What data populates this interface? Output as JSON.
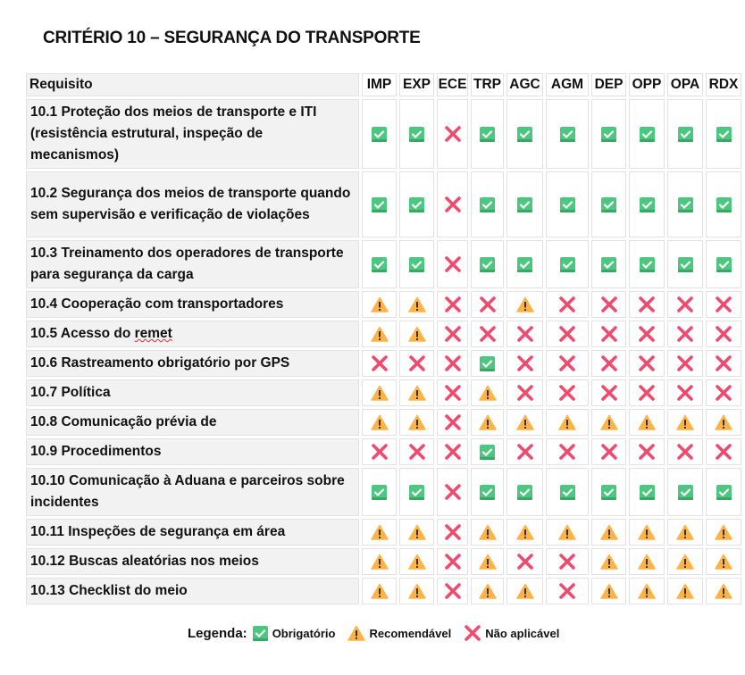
{
  "title": "CRITÉRIO 10 – SEGURANÇA DO TRANSPORTE",
  "header": {
    "requisito": "Requisito",
    "columns": [
      "IMP",
      "EXP",
      "ECE",
      "TRP",
      "AGC",
      "AGM",
      "DEP",
      "OPP",
      "OPA",
      "RDX"
    ]
  },
  "rows": [
    {
      "label": "10.1 Proteção dos meios de transporte e ITI (resistência estrutural, inspeção de mecanismos)",
      "values": [
        "C",
        "C",
        "X",
        "C",
        "C",
        "C",
        "C",
        "C",
        "C",
        "C"
      ]
    },
    {
      "label": "10.2 Segurança dos meios de transporte quando sem supervisão e verificação de violações",
      "values": [
        "C",
        "C",
        "X",
        "C",
        "C",
        "C",
        "C",
        "C",
        "C",
        "C"
      ]
    },
    {
      "label": "10.3 Treinamento dos operadores de transporte para segurança da carga",
      "values": [
        "C",
        "C",
        "X",
        "C",
        "C",
        "C",
        "C",
        "C",
        "C",
        "C"
      ]
    },
    {
      "label": "10.4 Cooperação com transportadores",
      "values": [
        "W",
        "W",
        "X",
        "X",
        "W",
        "X",
        "X",
        "X",
        "X",
        "X"
      ]
    },
    {
      "label": "10.5 Acesso do remet",
      "values": [
        "W",
        "W",
        "X",
        "X",
        "X",
        "X",
        "X",
        "X",
        "X",
        "X"
      ]
    },
    {
      "label": "10.6 Rastreamento obrigatório por GPS",
      "values": [
        "X",
        "X",
        "X",
        "C",
        "X",
        "X",
        "X",
        "X",
        "X",
        "X"
      ]
    },
    {
      "label": "10.7 Política",
      "values": [
        "W",
        "W",
        "X",
        "W",
        "X",
        "X",
        "X",
        "X",
        "X",
        "X"
      ]
    },
    {
      "label": "10.8 Comunicação prévia de",
      "values": [
        "W",
        "W",
        "X",
        "W",
        "W",
        "W",
        "W",
        "W",
        "W",
        "W"
      ]
    },
    {
      "label": "10.9 Procedimentos",
      "values": [
        "X",
        "X",
        "X",
        "C",
        "X",
        "X",
        "X",
        "X",
        "X",
        "X"
      ]
    },
    {
      "label": "10.10 Comunicação à Aduana e parceiros sobre incidentes",
      "values": [
        "C",
        "C",
        "X",
        "C",
        "C",
        "C",
        "C",
        "C",
        "C",
        "C"
      ]
    },
    {
      "label": "10.11 Inspeções de segurança em área",
      "values": [
        "W",
        "W",
        "X",
        "W",
        "W",
        "W",
        "W",
        "W",
        "W",
        "W"
      ]
    },
    {
      "label": "10.12 Buscas aleatórias nos meios",
      "values": [
        "W",
        "W",
        "X",
        "W",
        "X",
        "X",
        "W",
        "W",
        "W",
        "W"
      ]
    },
    {
      "label": "10.13 Checklist do meio",
      "values": [
        "W",
        "W",
        "X",
        "W",
        "W",
        "X",
        "W",
        "W",
        "W",
        "W"
      ]
    }
  ],
  "legend": {
    "label": "Legenda:",
    "mandatory": "Obrigatório",
    "recommended": "Recomendável",
    "not_applicable": "Não aplicável"
  },
  "icons": {
    "C": "check-box-icon",
    "W": "warning-icon",
    "X": "cross-icon"
  },
  "colors": {
    "check": "#4cc77f",
    "warning": "#ffb347",
    "cross": "#f04a6e"
  }
}
